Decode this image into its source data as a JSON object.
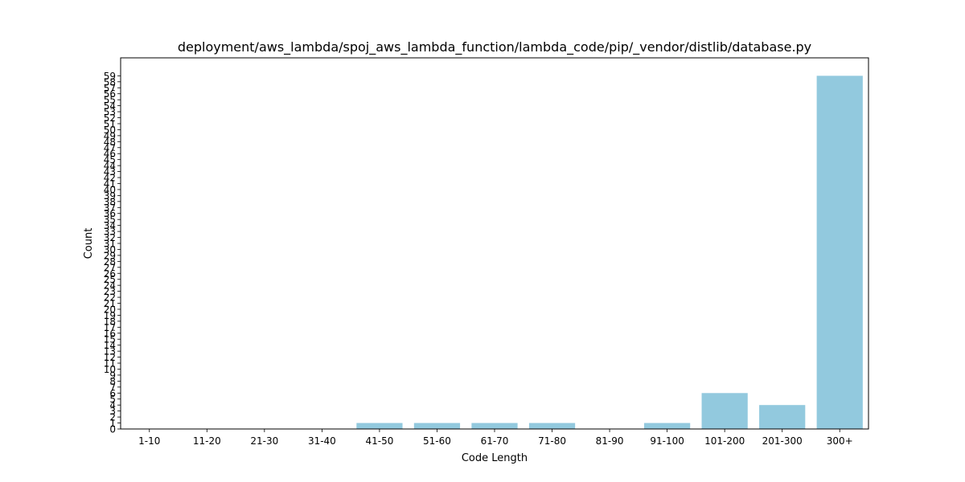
{
  "chart_data": {
    "type": "bar",
    "title": "deployment/aws_lambda/spoj_aws_lambda_function/lambda_code/pip/_vendor/distlib/database.py",
    "xlabel": "Code Length",
    "ylabel": "Count",
    "categories": [
      "1-10",
      "11-20",
      "21-30",
      "31-40",
      "41-50",
      "51-60",
      "61-70",
      "71-80",
      "81-90",
      "91-100",
      "101-200",
      "201-300",
      "300+"
    ],
    "values": [
      0,
      0,
      0,
      0,
      1,
      1,
      1,
      1,
      0,
      1,
      6,
      4,
      59
    ],
    "ylim": [
      0,
      62
    ],
    "yticks": [
      0,
      1,
      2,
      3,
      4,
      5,
      6,
      7,
      8,
      9,
      10,
      11,
      12,
      13,
      14,
      15,
      16,
      17,
      18,
      19,
      20,
      21,
      22,
      23,
      24,
      25,
      26,
      27,
      28,
      29,
      30,
      31,
      32,
      33,
      34,
      35,
      36,
      37,
      38,
      39,
      40,
      41,
      42,
      43,
      44,
      45,
      46,
      47,
      48,
      49,
      50,
      51,
      52,
      53,
      54,
      55,
      56,
      57,
      58,
      59
    ],
    "bar_color": "#92c9de",
    "grid": false,
    "legend": "none"
  }
}
